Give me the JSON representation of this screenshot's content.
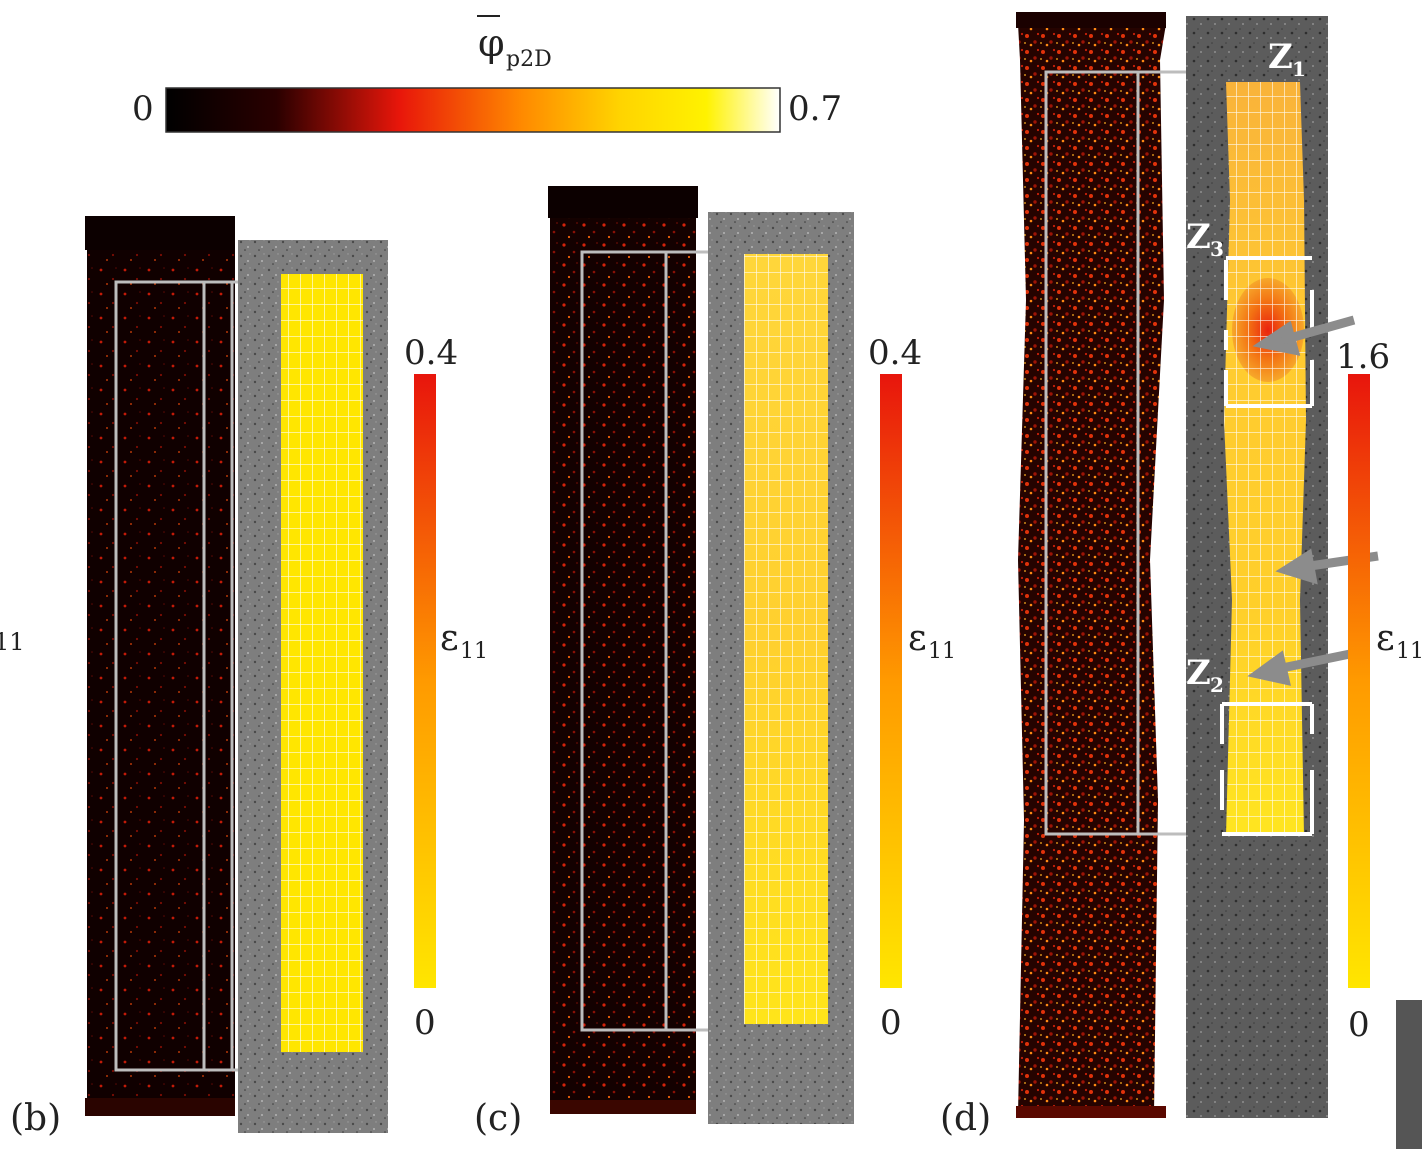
{
  "phi_colorbar": {
    "symbol": "φ",
    "subscript": "p2D",
    "min_label": "0",
    "max_label": "0.7",
    "colors": [
      "#000000",
      "#3a0000",
      "#e01a0a",
      "#ff7a00",
      "#ffd200",
      "#fff000",
      "#ffffff"
    ]
  },
  "panels": [
    {
      "label": "(b)",
      "eps_symbol": "ε",
      "eps_sub": "11",
      "eps_max": "0.4",
      "eps_min": "0"
    },
    {
      "label": "(c)",
      "eps_symbol": "ε",
      "eps_sub": "11",
      "eps_max": "0.4",
      "eps_min": "0"
    },
    {
      "label": "(d)",
      "eps_symbol": "ε",
      "eps_sub": "11",
      "eps_max": "1.6",
      "eps_min": "0"
    }
  ],
  "cut_label": {
    "symbol": "ε",
    "sub": "11"
  },
  "zones": [
    {
      "name": "Z",
      "sub": "1"
    },
    {
      "name": "Z",
      "sub": "3"
    },
    {
      "name": "Z",
      "sub": "2"
    }
  ],
  "colors": {
    "strain_low": "#ffe600",
    "strain_high": "#e8150c",
    "map_dark": "#120000",
    "speckle_gray": "#8a8a8a",
    "frame_gray": "#bdbdbd"
  }
}
